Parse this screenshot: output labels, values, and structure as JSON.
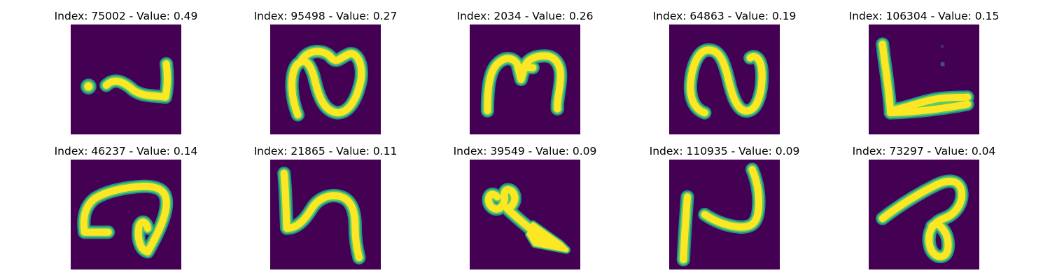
{
  "colors": {
    "background": "#440154",
    "stroke_core": "#fde725",
    "stroke_mid": "#5ec962",
    "stroke_edge": "#21918c"
  },
  "panels": [
    {
      "title": "Index: 75002 - Value: 0.49",
      "glyph": "glyph-dot-tilde-icon"
    },
    {
      "title": "Index: 95498 - Value: 0.27",
      "glyph": "glyph-loop-n-icon"
    },
    {
      "title": "Index: 2034 - Value: 0.26",
      "glyph": "glyph-m-icon"
    },
    {
      "title": "Index: 64863 - Value: 0.19",
      "glyph": "glyph-s-curve-icon"
    },
    {
      "title": "Index: 106304 - Value: 0.15",
      "glyph": "glyph-l-corner-icon"
    },
    {
      "title": "Index: 46237 - Value: 0.14",
      "glyph": "glyph-spiral-icon"
    },
    {
      "title": "Index: 21865 - Value: 0.11",
      "glyph": "glyph-h-curve-icon"
    },
    {
      "title": "Index: 39549 - Value: 0.09",
      "glyph": "glyph-arrow-loop-icon"
    },
    {
      "title": "Index: 110935 - Value: 0.09",
      "glyph": "glyph-bar-hook-icon"
    },
    {
      "title": "Index: 73297 - Value: 0.04",
      "glyph": "glyph-loop-six-icon"
    }
  ]
}
